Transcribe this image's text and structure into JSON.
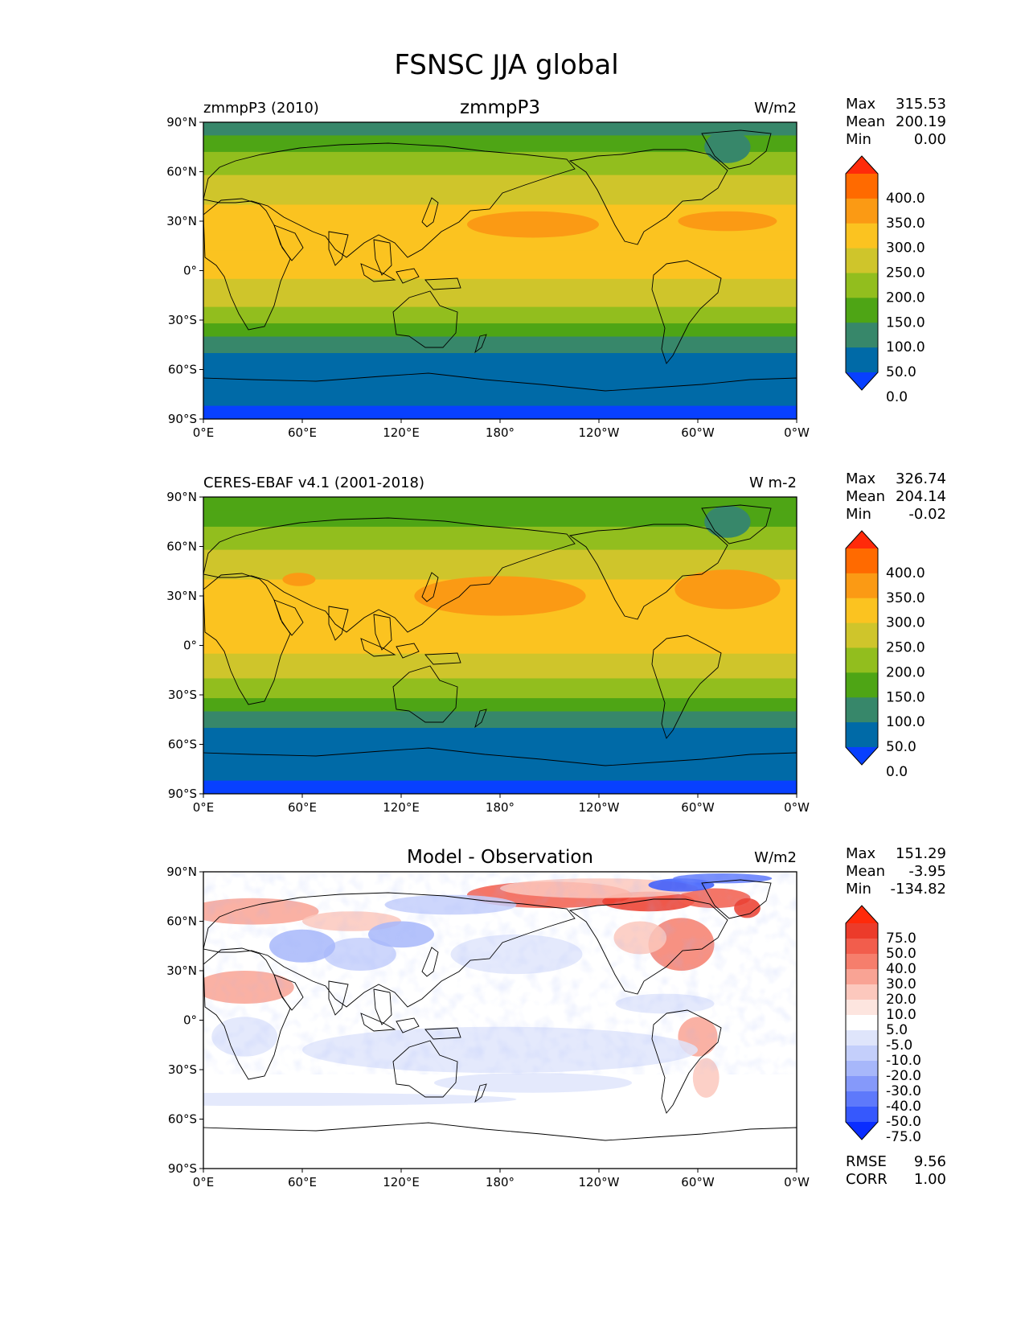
{
  "figure": {
    "title": "FSNSC JJA global",
    "x_ticks": [
      "0°E",
      "60°E",
      "120°E",
      "180°",
      "120°W",
      "60°W",
      "0°W"
    ],
    "y_ticks": [
      "90°N",
      "60°N",
      "30°N",
      "0°",
      "30°S",
      "60°S",
      "90°S"
    ]
  },
  "panels": [
    {
      "id": "model",
      "left_title": "zmmpP3 (2010)",
      "center_title": "zmmpP3",
      "right_title": "W/m2",
      "stats": [
        {
          "label": "Max",
          "value": "315.53"
        },
        {
          "label": "Mean",
          "value": "200.19"
        },
        {
          "label": "Min",
          "value": "0.00"
        }
      ],
      "colorbar": {
        "labels": [
          "400.0",
          "350.0",
          "300.0",
          "250.0",
          "200.0",
          "150.0",
          "100.0",
          "50.0",
          "0.0"
        ],
        "colors": [
          "#ff2a0a",
          "#ff6a00",
          "#fb9a14",
          "#fbc320",
          "#cfc52b",
          "#92be1e",
          "#4ea515",
          "#37876a",
          "#006aa7",
          "#0840ff"
        ]
      },
      "footer": []
    },
    {
      "id": "obs",
      "left_title": "CERES-EBAF v4.1 (2001-2018)",
      "center_title": "",
      "right_title": "W m-2",
      "stats": [
        {
          "label": "Max",
          "value": "326.74"
        },
        {
          "label": "Mean",
          "value": "204.14"
        },
        {
          "label": "Min",
          "value": "-0.02"
        }
      ],
      "colorbar": {
        "labels": [
          "400.0",
          "350.0",
          "300.0",
          "250.0",
          "200.0",
          "150.0",
          "100.0",
          "50.0",
          "0.0"
        ],
        "colors": [
          "#ff2a0a",
          "#ff6a00",
          "#fb9a14",
          "#fbc320",
          "#cfc52b",
          "#92be1e",
          "#4ea515",
          "#37876a",
          "#006aa7",
          "#0840ff"
        ]
      },
      "footer": []
    },
    {
      "id": "diff",
      "left_title": "",
      "center_title": "Model - Observation",
      "right_title": "W/m2",
      "stats": [
        {
          "label": "Max",
          "value": "151.29"
        },
        {
          "label": "Mean",
          "value": "-3.95"
        },
        {
          "label": "Min",
          "value": "-134.82"
        }
      ],
      "colorbar": {
        "labels": [
          "75.0",
          "50.0",
          "40.0",
          "30.0",
          "20.0",
          "10.0",
          "5.0",
          "-5.0",
          "-10.0",
          "-20.0",
          "-30.0",
          "-40.0",
          "-50.0",
          "-75.0"
        ],
        "colors": [
          "#ff2a0a",
          "#ec3b2a",
          "#f25d4c",
          "#f67e6c",
          "#f9a394",
          "#fcc8bd",
          "#fde5df",
          "#ffffff",
          "#dfe5fb",
          "#c4cffb",
          "#a7b7fa",
          "#8599fa",
          "#5e79fb",
          "#3658fd",
          "#0a2dff"
        ]
      },
      "footer": [
        {
          "label": "RMSE",
          "value": "9.56"
        },
        {
          "label": "CORR",
          "value": "1.00"
        }
      ]
    }
  ]
}
